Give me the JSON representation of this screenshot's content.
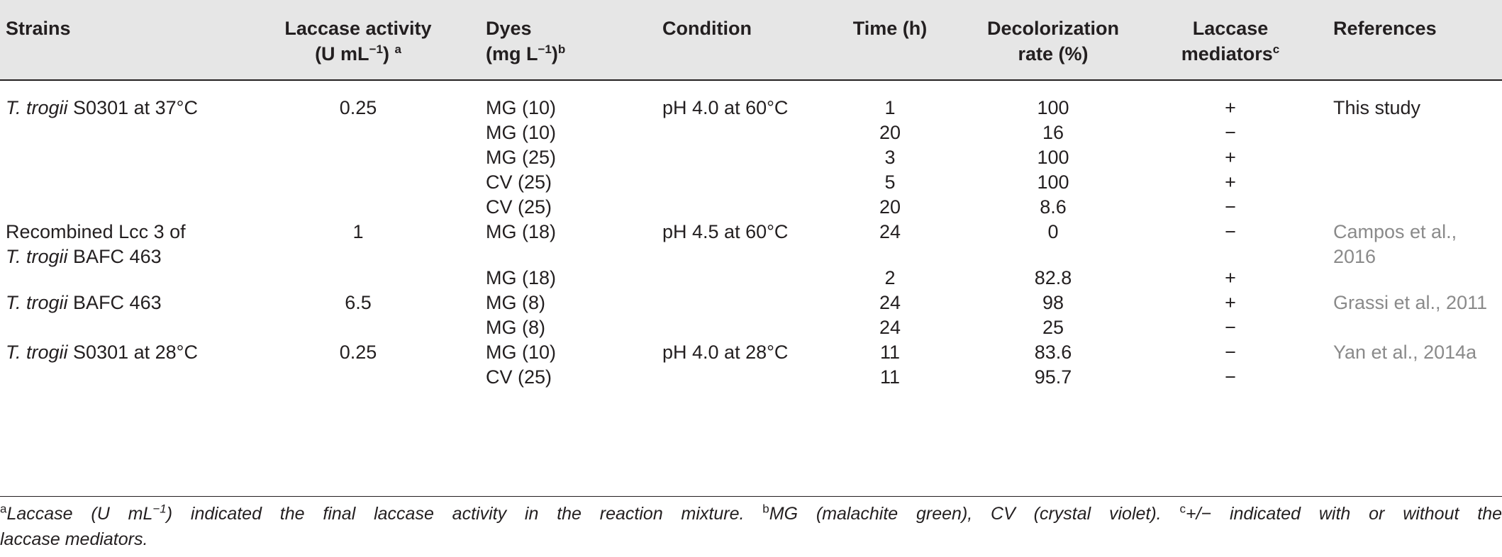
{
  "table": {
    "headers": {
      "strains": "Strains",
      "activity_l1": "Laccase activity",
      "activity_l2": "(U mL",
      "activity_exp": "−1",
      "activity_l2_end": ")",
      "activity_sup": "a",
      "dyes_l1": "Dyes",
      "dyes_l2": "(mg L",
      "dyes_exp": "−1",
      "dyes_l2_end": ")",
      "dyes_sup": "b",
      "condition": "Condition",
      "time": "Time (h)",
      "decol_l1": "Decolorization",
      "decol_l2": "rate (%)",
      "mediators_l1": "Laccase",
      "mediators_l2": "mediators",
      "mediators_sup": "c",
      "references": "References"
    },
    "rows": [
      {
        "strain_it": "T. trogii",
        "strain_rest": " S0301 at 37°C",
        "activity": "0.25",
        "dye": "MG (10)",
        "condition": "pH 4.0 at 60°C",
        "time": "1",
        "rate": "100",
        "mediator": "+",
        "reference": "This study"
      },
      {
        "dye": "MG (10)",
        "time": "20",
        "rate": "16",
        "mediator": "−"
      },
      {
        "dye": "MG (25)",
        "time": "3",
        "rate": "100",
        "mediator": "+"
      },
      {
        "dye": "CV (25)",
        "time": "5",
        "rate": "100",
        "mediator": "+"
      },
      {
        "dye": "CV (25)",
        "time": "20",
        "rate": "8.6",
        "mediator": "−"
      },
      {
        "strain_l1": "Recombined Lcc 3 of",
        "strain_it": "T. trogii",
        "strain_rest": " BAFC 463",
        "activity": "1",
        "dye": "MG (18)",
        "condition": "pH 4.5 at 60°C",
        "time": "24",
        "rate": "0",
        "mediator": "−",
        "reference_l1": "Campos et al.,",
        "reference_l2": "2016"
      },
      {
        "dye": "MG (18)",
        "time": "2",
        "rate": "82.8",
        "mediator": "+"
      },
      {
        "strain_it": "T. trogii",
        "strain_rest": " BAFC 463",
        "activity": "6.5",
        "dye": "MG (8)",
        "time": "24",
        "rate": "98",
        "mediator": "+",
        "reference": "Grassi et al., 2011"
      },
      {
        "dye": "MG (8)",
        "time": "24",
        "rate": "25",
        "mediator": "−"
      },
      {
        "strain_it": "T. trogii",
        "strain_rest": " S0301 at 28°C",
        "activity": "0.25",
        "dye": "MG (10)",
        "condition": "pH 4.0 at 28°C",
        "time": "11",
        "rate": "83.6",
        "mediator": "−",
        "reference": "Yan et al., 2014a"
      },
      {
        "dye": "CV (25)",
        "time": "11",
        "rate": "95.7",
        "mediator": "−"
      }
    ]
  },
  "footnotes": {
    "a_mark": "a",
    "a_text_1": "Laccase (U mL",
    "a_exp": "−1",
    "a_text_2": ") indicated the final laccase activity in the reaction mixture.",
    "b_mark": "b",
    "b_text": "MG (malachite green), CV (crystal violet).",
    "c_mark": "c",
    "c_text": "+/− indicated with or without the",
    "c_text_cont": "laccase mediators."
  }
}
